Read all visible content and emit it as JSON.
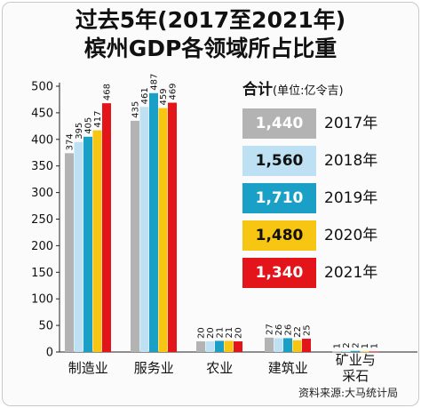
{
  "title_line1": "过去5年(2017至2021年)",
  "title_line2": "槟州GDP各领域所占比重",
  "legend": {
    "heading": "合计",
    "unit": "(单位:亿令吉)",
    "rows": [
      {
        "total": "1,440",
        "year": "2017年",
        "color": "#b3b3b3",
        "text_color": "#ffffff"
      },
      {
        "total": "1,560",
        "year": "2018年",
        "color": "#bde0f3",
        "text_color": "#111111"
      },
      {
        "total": "1,710",
        "year": "2019年",
        "color": "#1aa0c6",
        "text_color": "#ffffff"
      },
      {
        "total": "1,480",
        "year": "2020年",
        "color": "#f7c613",
        "text_color": "#111111"
      },
      {
        "total": "1,340",
        "year": "2021年",
        "color": "#e3151b",
        "text_color": "#ffffff"
      }
    ]
  },
  "source": "资料来源:大马统计局",
  "chart_data": {
    "type": "bar",
    "categories": [
      "制造业",
      "服务业",
      "农业",
      "建筑业",
      "矿业与\n采石"
    ],
    "series": [
      {
        "name": "2017年",
        "color": "#b3b3b3",
        "values": [
          374,
          435,
          20,
          27,
          1
        ]
      },
      {
        "name": "2018年",
        "color": "#bde0f3",
        "values": [
          395,
          461,
          20,
          26,
          2
        ]
      },
      {
        "name": "2019年",
        "color": "#1aa0c6",
        "values": [
          405,
          487,
          21,
          26,
          2
        ]
      },
      {
        "name": "2020年",
        "color": "#f7c613",
        "values": [
          417,
          459,
          21,
          22,
          1
        ]
      },
      {
        "name": "2021年",
        "color": "#e3151b",
        "values": [
          468,
          469,
          20,
          25,
          1
        ]
      }
    ],
    "yticks": [
      0,
      50,
      100,
      150,
      200,
      250,
      300,
      350,
      400,
      450,
      500
    ],
    "ylim": [
      0,
      500
    ],
    "grid": false,
    "legend_position": "right"
  }
}
